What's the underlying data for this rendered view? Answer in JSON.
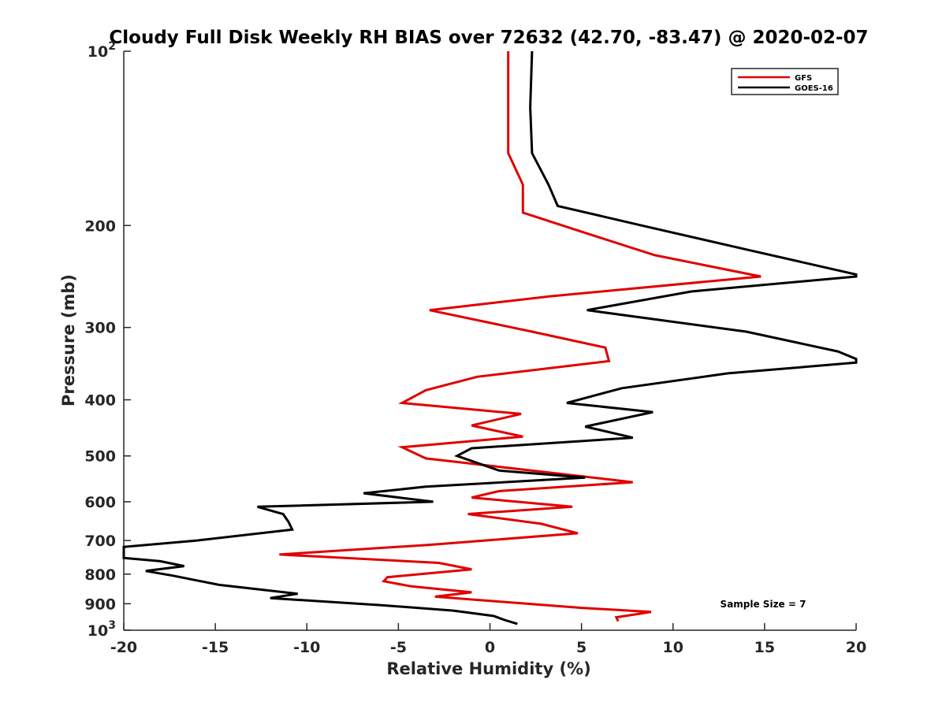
{
  "chart_data": {
    "type": "line",
    "title": "Cloudy Full Disk Weekly RH BIAS over 72632 (42.70, -83.47) @ 2020-02-07",
    "xlabel": "Relative Humidity (%)",
    "ylabel": "Pressure (mb)",
    "xlim": [
      -20,
      20
    ],
    "ylim": [
      100,
      1000
    ],
    "y_scale": "log",
    "y_reversed": true,
    "grid": false,
    "legend_position": "top-right",
    "x_ticks": [
      -20,
      -15,
      -10,
      -5,
      0,
      5,
      10,
      15,
      20
    ],
    "x_tick_labels": [
      "-20",
      "-15",
      "-10",
      "-5",
      "0",
      "5",
      "10",
      "15",
      "20"
    ],
    "y_ticks": [
      {
        "value": 100,
        "base": "10",
        "exp": "2"
      },
      {
        "value": 200,
        "label": "200"
      },
      {
        "value": 300,
        "label": "300"
      },
      {
        "value": 400,
        "label": "400"
      },
      {
        "value": 500,
        "label": "500"
      },
      {
        "value": 600,
        "label": "600"
      },
      {
        "value": 700,
        "label": "700"
      },
      {
        "value": 800,
        "label": "800"
      },
      {
        "value": 900,
        "label": "900"
      },
      {
        "value": 1000,
        "base": "10",
        "exp": "3"
      }
    ],
    "annotation": "Sample Size = 7",
    "series": [
      {
        "name": "GFS",
        "color": "#e00000",
        "points": [
          [
            1.0,
            100
          ],
          [
            1.0,
            125
          ],
          [
            1.0,
            150
          ],
          [
            1.8,
            170
          ],
          [
            1.8,
            190
          ],
          [
            5.0,
            205
          ],
          [
            9.0,
            225
          ],
          [
            14.8,
            245
          ],
          [
            3.3,
            265
          ],
          [
            -3.3,
            280
          ],
          [
            2.3,
            305
          ],
          [
            6.3,
            325
          ],
          [
            6.5,
            343
          ],
          [
            -0.7,
            365
          ],
          [
            -3.5,
            385
          ],
          [
            -4.8,
            405
          ],
          [
            1.7,
            423
          ],
          [
            -1.0,
            443
          ],
          [
            1.8,
            463
          ],
          [
            -4.8,
            483
          ],
          [
            -3.5,
            505
          ],
          [
            7.8,
            555
          ],
          [
            0.5,
            575
          ],
          [
            -1.0,
            590
          ],
          [
            4.5,
            612
          ],
          [
            -1.2,
            630
          ],
          [
            2.8,
            655
          ],
          [
            4.8,
            680
          ],
          [
            -3.3,
            712
          ],
          [
            -11.5,
            740
          ],
          [
            -2.8,
            765
          ],
          [
            -1.0,
            785
          ],
          [
            -5.6,
            810
          ],
          [
            -5.8,
            823
          ],
          [
            -4.3,
            840
          ],
          [
            -1.0,
            860
          ],
          [
            -3.0,
            875
          ],
          [
            5.0,
            915
          ],
          [
            8.8,
            930
          ],
          [
            6.9,
            950
          ],
          [
            7.0,
            965
          ]
        ]
      },
      {
        "name": "GOES-16",
        "color": "#000000",
        "points": [
          [
            2.3,
            100
          ],
          [
            2.2,
            125
          ],
          [
            2.3,
            150
          ],
          [
            3.2,
            170
          ],
          [
            3.7,
            185
          ],
          [
            8.3,
            200
          ],
          [
            14.0,
            220
          ],
          [
            20.0,
            243
          ],
          [
            20.0,
            245
          ],
          [
            11.0,
            260
          ],
          [
            5.3,
            280
          ],
          [
            14.0,
            305
          ],
          [
            19.0,
            330
          ],
          [
            20.0,
            340
          ],
          [
            20.0,
            345
          ],
          [
            13.0,
            360
          ],
          [
            7.2,
            382
          ],
          [
            4.2,
            405
          ],
          [
            8.9,
            420
          ],
          [
            5.2,
            445
          ],
          [
            7.8,
            465
          ],
          [
            -1.0,
            485
          ],
          [
            -1.8,
            500
          ],
          [
            0.5,
            530
          ],
          [
            5.2,
            545
          ],
          [
            -3.5,
            565
          ],
          [
            -6.9,
            580
          ],
          [
            -3.1,
            600
          ],
          [
            -12.7,
            612
          ],
          [
            -11.3,
            630
          ],
          [
            -11.0,
            650
          ],
          [
            -10.8,
            670
          ],
          [
            -16.0,
            700
          ],
          [
            -20.0,
            718
          ],
          [
            -20.0,
            750
          ],
          [
            -18.0,
            760
          ],
          [
            -16.7,
            775
          ],
          [
            -18.8,
            790
          ],
          [
            -17.3,
            805
          ],
          [
            -14.8,
            835
          ],
          [
            -10.5,
            865
          ],
          [
            -12.0,
            880
          ],
          [
            -6.0,
            905
          ],
          [
            -2.0,
            925
          ],
          [
            0.2,
            945
          ],
          [
            0.8,
            960
          ],
          [
            1.5,
            975
          ]
        ]
      }
    ]
  }
}
